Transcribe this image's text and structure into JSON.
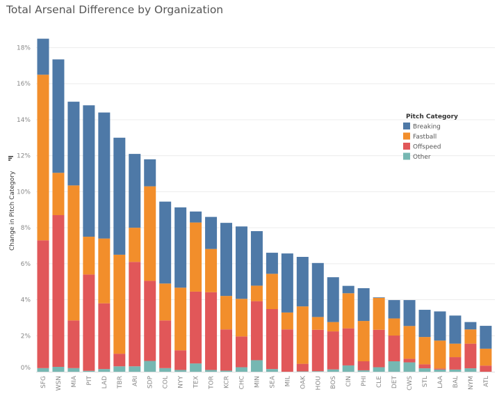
{
  "chart_data": {
    "type": "bar",
    "stacked": true,
    "title": "Total Arsenal Difference by Organization",
    "xlabel": "",
    "ylabel": "Change in Pitch Category",
    "ylim": [
      0,
      18.5
    ],
    "yticks": [
      "0%",
      "2%",
      "4%",
      "6%",
      "8%",
      "10%",
      "12%",
      "14%",
      "16%",
      "18%"
    ],
    "grid": true,
    "legend": {
      "title": "Pitch Category",
      "placement": "right"
    },
    "categories": [
      "SFG",
      "WSN",
      "MIA",
      "PIT",
      "LAD",
      "TBR",
      "ARI",
      "SDP",
      "COL",
      "NYY",
      "TEX",
      "TOR",
      "KCR",
      "CHC",
      "MIN",
      "SEA",
      "MIL",
      "OAK",
      "HOU",
      "BOS",
      "CIN",
      "PHI",
      "CLE",
      "DET",
      "CWS",
      "STL",
      "LAA",
      "BAL",
      "NYM",
      "ATL"
    ],
    "series": [
      {
        "name": "Other",
        "color": "#76b7b2",
        "values": [
          0.2,
          0.27,
          0.2,
          0.05,
          0.15,
          0.3,
          0.3,
          0.6,
          0.2,
          0.1,
          0.46,
          0.1,
          0.06,
          0.25,
          0.64,
          0.15,
          0,
          0.02,
          0.03,
          0.13,
          0.35,
          0.08,
          0.25,
          0.58,
          0.52,
          0.19,
          0.12,
          0.12,
          0.19,
          0
        ]
      },
      {
        "name": "Offspeed",
        "color": "#e15759",
        "values": [
          7.1,
          8.43,
          2.65,
          5.35,
          3.65,
          0.7,
          5.8,
          4.45,
          2.65,
          1.09,
          3.99,
          4.32,
          2.29,
          1.71,
          3.28,
          3.33,
          2.35,
          0.42,
          2.3,
          2.11,
          2.06,
          0.5,
          2.08,
          1.43,
          0.2,
          0.22,
          0.06,
          0.69,
          1.37,
          0.34
        ]
      },
      {
        "name": "Fastball",
        "color": "#f28e2b",
        "values": [
          9.2,
          2.35,
          7.5,
          2.1,
          3.6,
          5.5,
          1.9,
          5.25,
          2.05,
          3.48,
          3.84,
          2.4,
          1.86,
          2.09,
          0.86,
          1.96,
          0.94,
          3.19,
          0.71,
          0.52,
          1.95,
          2.24,
          1.77,
          0.95,
          1.82,
          1.52,
          1.55,
          0.75,
          0.79,
          0.94
        ]
      },
      {
        "name": "Breaking",
        "color": "#4e79a7",
        "values": [
          2.0,
          6.3,
          4.65,
          7.3,
          7.0,
          6.5,
          4.1,
          1.5,
          4.55,
          4.46,
          0.61,
          1.78,
          4.06,
          4.02,
          3.03,
          1.17,
          3.28,
          2.75,
          3.0,
          2.49,
          0.41,
          1.82,
          0.03,
          1.02,
          1.44,
          1.51,
          1.62,
          1.56,
          0.41,
          1.27
        ]
      }
    ],
    "legend_order": [
      "Breaking",
      "Fastball",
      "Offspeed",
      "Other"
    ]
  }
}
